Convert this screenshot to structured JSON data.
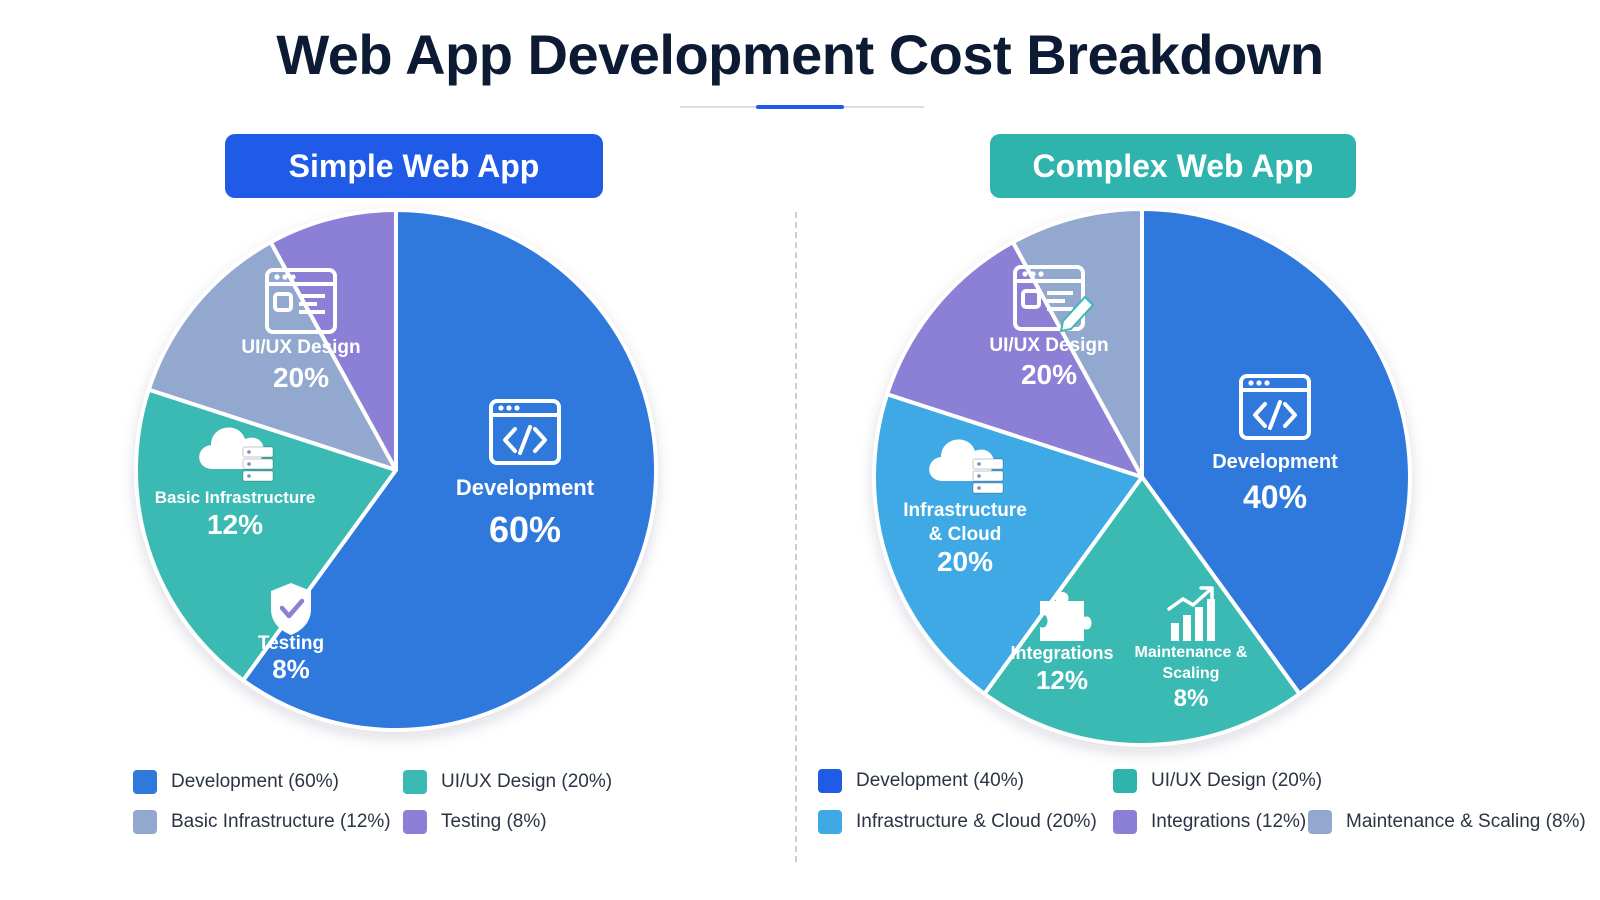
{
  "title": "Web App Development Cost Breakdown",
  "colors": {
    "accent": "#1f5be6",
    "teal": "#2fb3ad",
    "development": "#2f79dd",
    "uiux": "#3bbab3",
    "basic_infrastructure": "#93a8cf",
    "testing": "#8b7fd6",
    "infrastructure_cloud": "#3fa9e6",
    "integrations": "#8b7fd6",
    "maintenance": "#93a8cf"
  },
  "chart_data": [
    {
      "type": "pie",
      "title": "Simple Web App",
      "categories": [
        "Development",
        "UI/UX Design",
        "Basic Infrastructure",
        "Testing"
      ],
      "values": [
        60,
        20,
        12,
        8
      ],
      "unit": "%",
      "value_labels": [
        "60%",
        "20%",
        "12%",
        "8%"
      ],
      "icons": [
        "code-window-icon",
        "design-window-icon",
        "cloud-server-icon",
        "shield-check-icon"
      ],
      "legend": [
        "Development (60%)",
        "UI/UX Design (20%)",
        "Basic Infrastructure (12%)",
        "Testing (8%)"
      ],
      "legend_position": "bottom"
    },
    {
      "type": "pie",
      "title": "Complex Web App",
      "categories": [
        "Development",
        "UI/UX Design",
        "Infrastructure & Cloud",
        "Integrations",
        "Maintenance & Scaling"
      ],
      "values": [
        40,
        20,
        20,
        12,
        8
      ],
      "unit": "%",
      "value_labels": [
        "40%",
        "20%",
        "20%",
        "12%",
        "8%"
      ],
      "icons": [
        "code-window-icon",
        "design-edit-icon",
        "cloud-server-icon",
        "puzzle-icon",
        "growth-chart-icon"
      ],
      "legend": [
        "Development (40%)",
        "UI/UX Design (20%)",
        "Infrastructure & Cloud (20%)",
        "Integrations (12%)",
        "Maintenance & Scaling (8%)"
      ],
      "legend_position": "bottom"
    }
  ]
}
